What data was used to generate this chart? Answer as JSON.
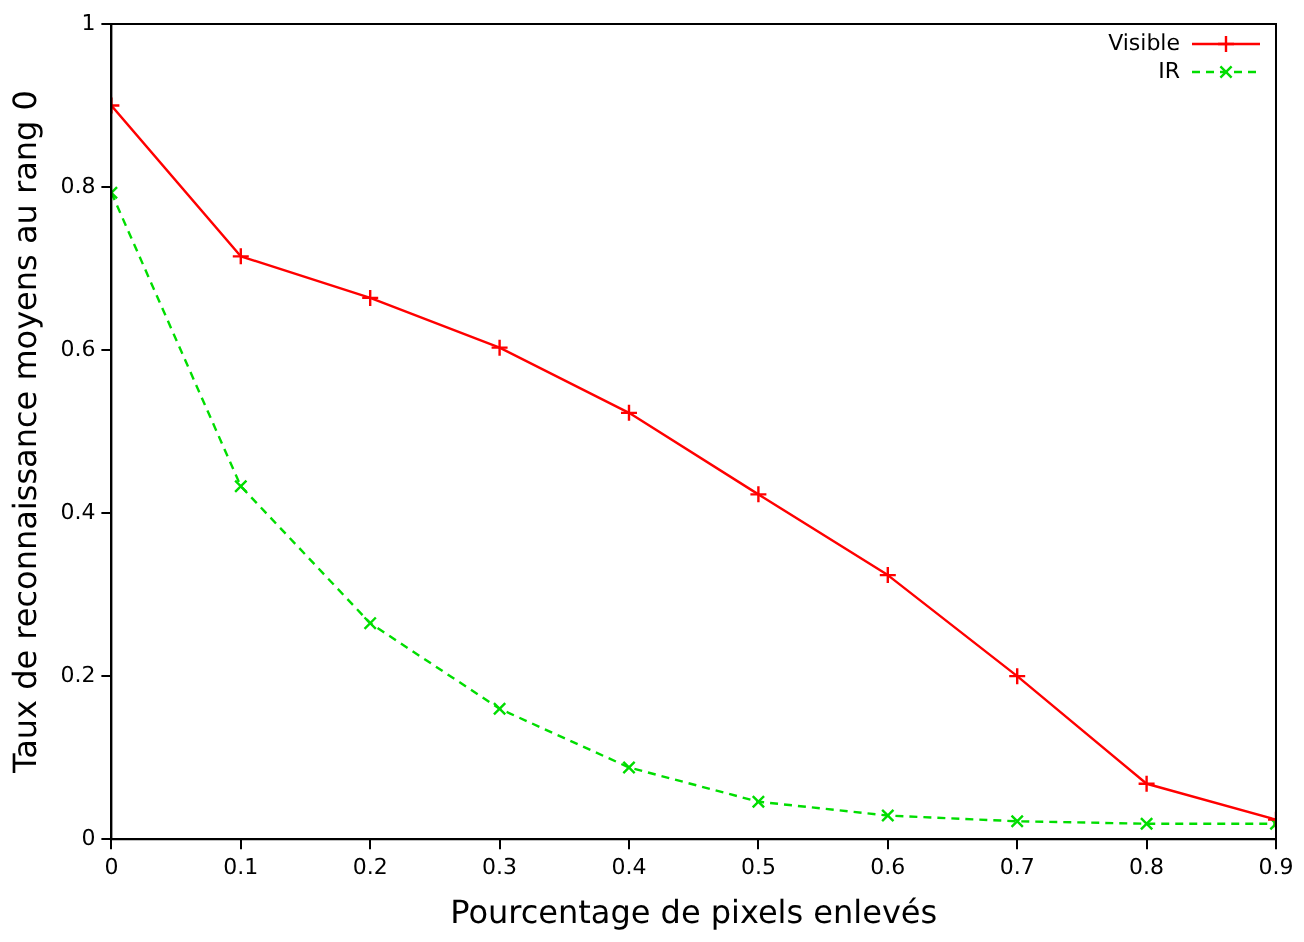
{
  "chart_data": {
    "type": "line",
    "xlabel": "Pourcentage de pixels enlevés",
    "ylabel": "Taux de reconnaissance moyens au rang 0",
    "x": [
      0,
      0.1,
      0.2,
      0.3,
      0.4,
      0.5,
      0.6,
      0.7,
      0.8,
      0.9
    ],
    "series": [
      {
        "name": "Visible",
        "color": "#ff0000",
        "line_style": "solid",
        "values": [
          0.9,
          0.715,
          0.664,
          0.603,
          0.523,
          0.423,
          0.324,
          0.2,
          0.068,
          0.024
        ]
      },
      {
        "name": "IR",
        "color": "#00dd00",
        "line_style": "dashed",
        "values": [
          0.793,
          0.433,
          0.265,
          0.16,
          0.088,
          0.046,
          0.029,
          0.022,
          0.019,
          0.019
        ]
      }
    ],
    "marker": "cross",
    "legend": "top right",
    "grid": false,
    "xlim": [
      0,
      0.9
    ],
    "xticks": [
      0,
      0.1,
      0.2,
      0.3,
      0.4,
      0.5,
      0.6,
      0.7,
      0.8,
      0.9
    ],
    "ylim": [
      0,
      1
    ],
    "yticks": [
      0,
      0.2,
      0.4,
      0.6,
      0.8,
      1
    ]
  }
}
